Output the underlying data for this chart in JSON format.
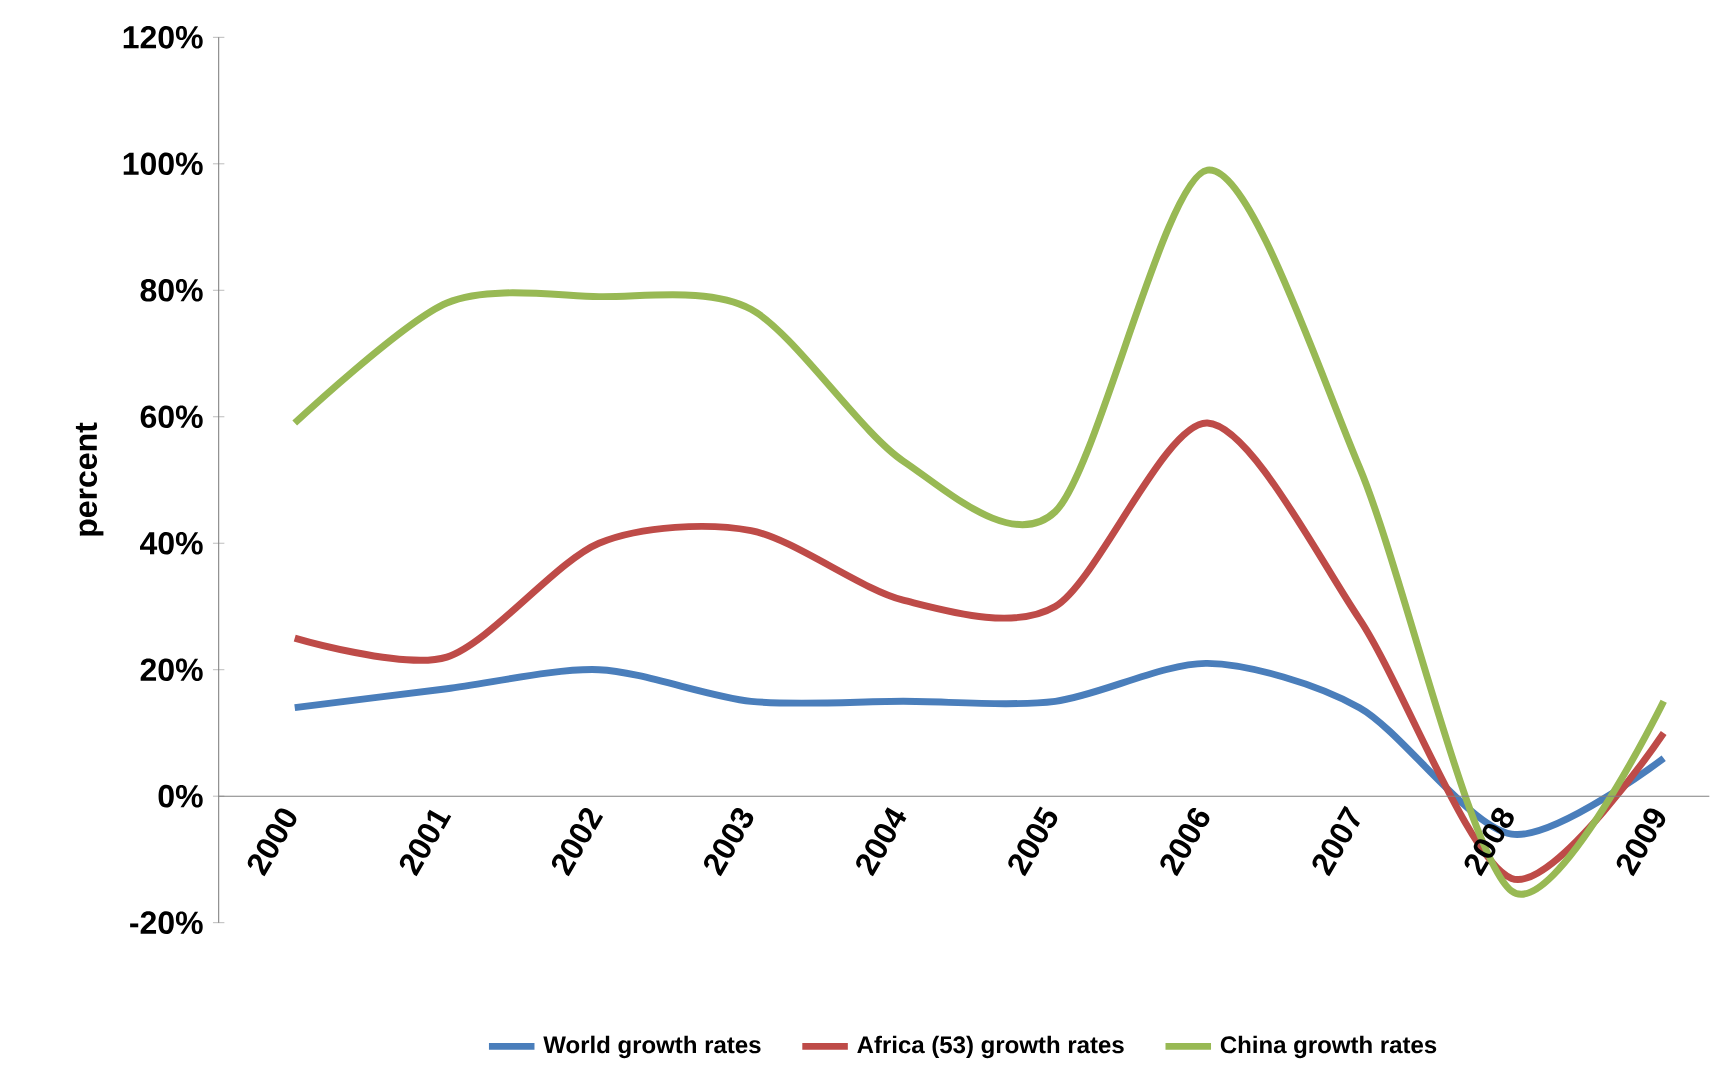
{
  "chart_data": {
    "type": "line",
    "ylabel": "percent",
    "categories": [
      "2000",
      "2001",
      "2002",
      "2003",
      "2004",
      "2005",
      "2006",
      "2007",
      "2008",
      "2009"
    ],
    "series": [
      {
        "name": "World growth rates",
        "color": "#4a7ebb",
        "values": [
          14,
          17,
          20,
          15,
          15,
          15,
          21,
          14,
          -6,
          6
        ]
      },
      {
        "name": "Africa (53) growth rates",
        "color": "#be4b48",
        "values": [
          25,
          22,
          40,
          42,
          31,
          30,
          59,
          28,
          -13,
          10
        ]
      },
      {
        "name": "China growth rates",
        "color": "#98b954",
        "values": [
          59,
          78,
          79,
          77,
          53,
          45,
          99,
          52,
          -15,
          15
        ]
      }
    ],
    "ylim": [
      -20,
      120
    ],
    "yticks": [
      {
        "value": -20,
        "label": "-20%"
      },
      {
        "value": 0,
        "label": "0%"
      },
      {
        "value": 20,
        "label": "20%"
      },
      {
        "value": 40,
        "label": "40%"
      },
      {
        "value": 60,
        "label": "60%"
      },
      {
        "value": 80,
        "label": "80%"
      },
      {
        "value": 100,
        "label": "100%"
      },
      {
        "value": 120,
        "label": "120%"
      }
    ],
    "legend": "bottom"
  }
}
